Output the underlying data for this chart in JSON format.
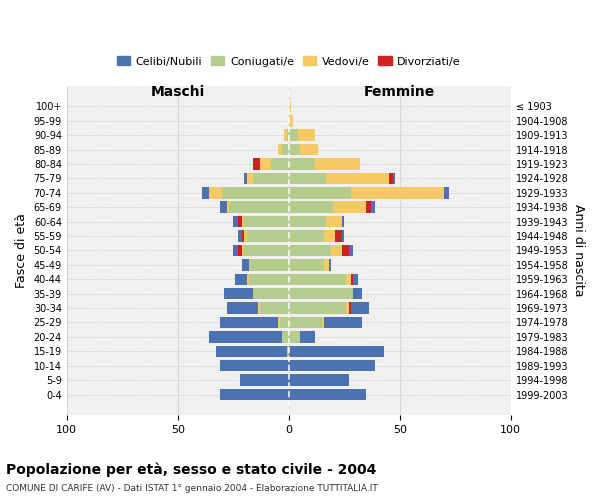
{
  "age_groups": [
    "0-4",
    "5-9",
    "10-14",
    "15-19",
    "20-24",
    "25-29",
    "30-34",
    "35-39",
    "40-44",
    "45-49",
    "50-54",
    "55-59",
    "60-64",
    "65-69",
    "70-74",
    "75-79",
    "80-84",
    "85-89",
    "90-94",
    "95-99",
    "100+"
  ],
  "birth_years": [
    "1999-2003",
    "1994-1998",
    "1989-1993",
    "1984-1988",
    "1979-1983",
    "1974-1978",
    "1969-1973",
    "1964-1968",
    "1959-1963",
    "1954-1958",
    "1949-1953",
    "1944-1948",
    "1939-1943",
    "1934-1938",
    "1929-1933",
    "1924-1928",
    "1919-1923",
    "1914-1918",
    "1909-1913",
    "1904-1908",
    "≤ 1903"
  ],
  "colors": {
    "celibi": "#4C72B0",
    "coniugati": "#B5CC8E",
    "vedovi": "#F5C963",
    "divorziati": "#CC2222"
  },
  "males": {
    "celibi": [
      31,
      22,
      31,
      32,
      33,
      26,
      14,
      13,
      5,
      3,
      2,
      2,
      2,
      3,
      3,
      1,
      0,
      0,
      0,
      0,
      0
    ],
    "coniugati": [
      0,
      0,
      0,
      1,
      3,
      4,
      13,
      16,
      18,
      18,
      20,
      19,
      20,
      27,
      30,
      16,
      8,
      3,
      1,
      0,
      0
    ],
    "vedovi": [
      0,
      0,
      0,
      0,
      0,
      1,
      1,
      0,
      1,
      0,
      1,
      1,
      1,
      1,
      6,
      3,
      5,
      2,
      1,
      0,
      0
    ],
    "divorziati": [
      0,
      0,
      0,
      0,
      0,
      0,
      0,
      0,
      0,
      0,
      2,
      1,
      2,
      0,
      0,
      0,
      3,
      0,
      0,
      0,
      0
    ]
  },
  "females": {
    "celibi": [
      35,
      27,
      39,
      43,
      7,
      17,
      8,
      4,
      2,
      1,
      2,
      1,
      1,
      2,
      2,
      1,
      0,
      0,
      0,
      0,
      0
    ],
    "coniugati": [
      0,
      0,
      0,
      0,
      5,
      15,
      26,
      29,
      26,
      16,
      19,
      16,
      17,
      20,
      28,
      17,
      12,
      5,
      4,
      0,
      0
    ],
    "vedovi": [
      0,
      0,
      0,
      0,
      0,
      1,
      1,
      0,
      2,
      2,
      5,
      5,
      7,
      15,
      42,
      28,
      20,
      8,
      8,
      2,
      1
    ],
    "divorziati": [
      0,
      0,
      0,
      0,
      0,
      0,
      1,
      0,
      1,
      0,
      3,
      3,
      0,
      2,
      0,
      2,
      0,
      0,
      0,
      0,
      0
    ]
  },
  "title": "Popolazione per età, sesso e stato civile - 2004",
  "subtitle": "COMUNE DI CARIFE (AV) - Dati ISTAT 1° gennaio 2004 - Elaborazione TUTTITALIA.IT",
  "ylabel": "Fasce di età",
  "ylabel_right": "Anni di nascita",
  "xlabel_left": "Maschi",
  "xlabel_right": "Femmine",
  "xlim": 100,
  "bg_color": "#f0f0f0",
  "grid_color": "#cccccc"
}
